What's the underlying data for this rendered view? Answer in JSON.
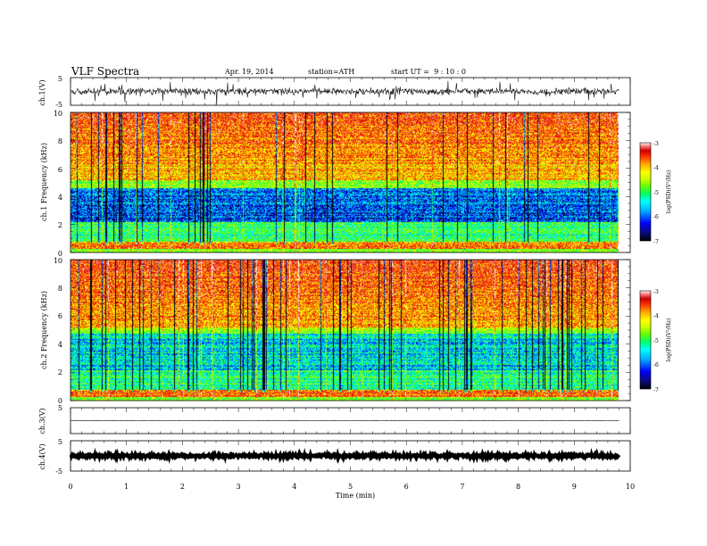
{
  "header": {
    "title": "VLF Spectra",
    "date": "Apr. 19, 2014",
    "station": "station=ATH",
    "start": "start UT =  9 : 10 : 0"
  },
  "colors": {
    "scale": [
      "#000000",
      "#0a0a7a",
      "#0000ff",
      "#00aaff",
      "#00ffff",
      "#00ff66",
      "#66ff00",
      "#ccff00",
      "#ffff00",
      "#ffaa00",
      "#ff3300",
      "#cc0000",
      "#ff8888",
      "#ffffff"
    ]
  },
  "chart_data": [
    {
      "type": "line",
      "panel": "ch1-waveform",
      "ylabel": "ch.1(V)",
      "ylim": [
        -5,
        5
      ],
      "yticks": [
        "5",
        "-5"
      ],
      "xlim": [
        0,
        10
      ],
      "time_span_min": 9.8,
      "level": 0,
      "noise_amplitude": 1.1
    },
    {
      "type": "heatmap",
      "panel": "ch1-spectrogram",
      "ylabel": "ch.1 Frequency (kHz)",
      "ylim": [
        0,
        10
      ],
      "yticks": [
        "0",
        "2",
        "4",
        "6",
        "8",
        "10"
      ],
      "colorbar": {
        "label": "log(PSD)(V²/Hz)",
        "range": [
          -7,
          -3
        ],
        "ticks": [
          "-3",
          "-4",
          "-5",
          "-6",
          "-7"
        ]
      }
    },
    {
      "type": "heatmap",
      "panel": "ch2-spectrogram",
      "ylabel": "ch.2 Frequency (kHz)",
      "ylim": [
        0,
        10
      ],
      "yticks": [
        "0",
        "2",
        "4",
        "6",
        "8",
        "10"
      ],
      "colorbar": {
        "label": "log(PSD)(V²/Hz)",
        "range": [
          -7,
          -3
        ],
        "ticks": [
          "-3",
          "-4",
          "-5",
          "-6",
          "-7"
        ]
      }
    },
    {
      "type": "line",
      "panel": "ch3-waveform",
      "ylabel": "ch.3(V)",
      "ylim": [
        -5,
        5
      ],
      "yticks": [
        "5"
      ],
      "level": 0,
      "noise_amplitude": 0.1
    },
    {
      "type": "line",
      "panel": "ch4-waveform",
      "ylabel": "ch.4(V)",
      "ylim": [
        -5,
        5
      ],
      "yticks": [
        "5",
        "-5"
      ],
      "level": 0,
      "noise_amplitude": 0.4
    },
    {
      "type": "axis",
      "xlabel": "Time (min)",
      "xlim": [
        0,
        10
      ],
      "xticks": [
        "0",
        "1",
        "2",
        "3",
        "4",
        "5",
        "6",
        "7",
        "8",
        "9",
        "10"
      ]
    }
  ]
}
